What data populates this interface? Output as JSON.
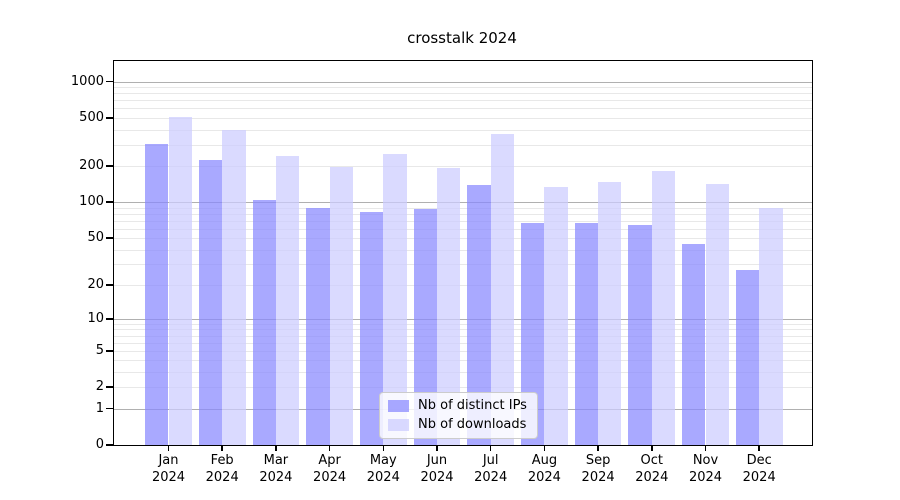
{
  "chart_data": {
    "type": "bar",
    "title": "crosstalk 2024",
    "yscale": "log1p",
    "ylim": [
      0,
      1480
    ],
    "grid": "on",
    "legend_position": "lower center",
    "months": [
      "Jan",
      "Feb",
      "Mar",
      "Apr",
      "May",
      "Jun",
      "Jul",
      "Aug",
      "Sep",
      "Oct",
      "Nov",
      "Dec"
    ],
    "year": "2024",
    "y_ticks": [
      0,
      1,
      2,
      5,
      10,
      20,
      50,
      100,
      200,
      500,
      1000
    ],
    "y_major_gridlines": [
      1,
      10,
      100,
      1000
    ],
    "series": [
      {
        "name": "Nb of distinct IPs",
        "fill": "rgba(136,136,255,0.72)",
        "values": [
          305,
          225,
          104,
          90,
          83,
          88,
          138,
          67,
          67,
          65,
          45,
          27
        ]
      },
      {
        "name": "Nb of downloads",
        "fill": "rgba(204,204,255,0.72)",
        "values": [
          505,
          400,
          242,
          195,
          250,
          192,
          370,
          133,
          148,
          183,
          143,
          90
        ]
      }
    ],
    "colors": {
      "grid_major": "#b0b0b0",
      "grid_minor": "#e8e8e8",
      "axis": "#000000",
      "background": "#ffffff"
    }
  }
}
